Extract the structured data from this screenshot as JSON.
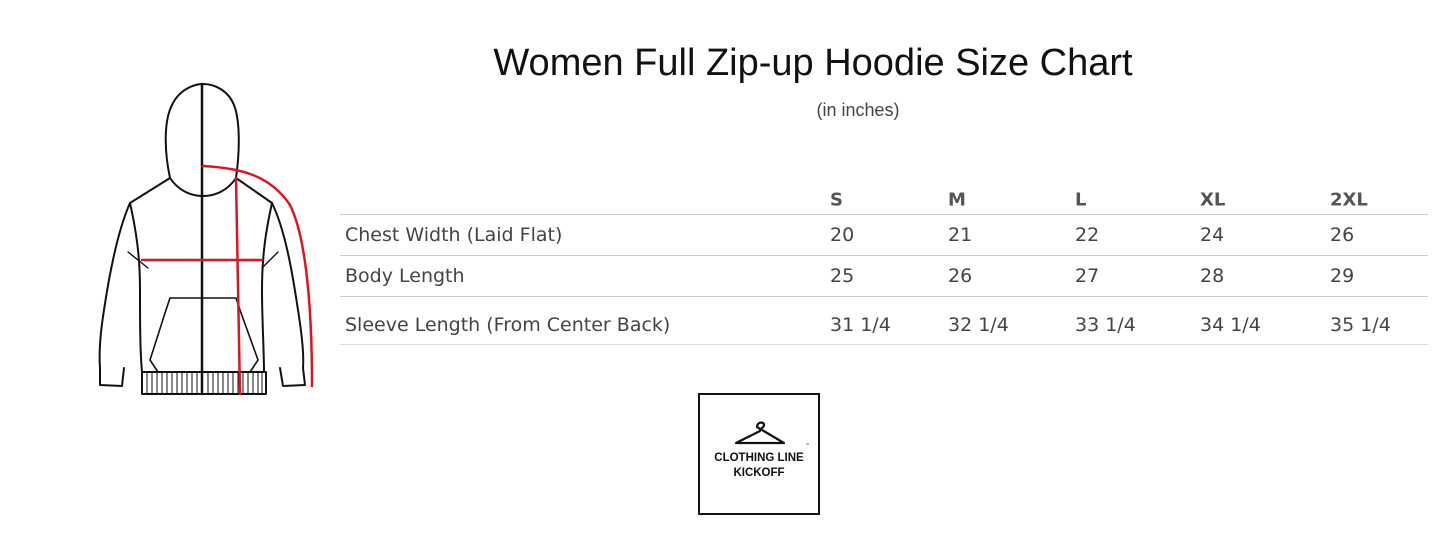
{
  "title": "Women Full Zip-up Hoodie Size Chart",
  "subtitle": "(in inches)",
  "table": {
    "columns": [
      "S",
      "M",
      "L",
      "XL",
      "2XL"
    ],
    "rows": [
      {
        "label": "Chest Width (Laid Flat)",
        "values": [
          "20",
          "21",
          "22",
          "24",
          "26"
        ]
      },
      {
        "label": "Body Length",
        "values": [
          "25",
          "26",
          "27",
          "28",
          "29"
        ]
      },
      {
        "label": "Sleeve Length (From Center Back)",
        "values": [
          "31 1/4",
          "32 1/4",
          "33 1/4",
          "34 1/4",
          "35 1/4"
        ]
      }
    ]
  },
  "logo": {
    "line1": "CLOTHING LINE",
    "line2": "KICKOFF",
    "tm": "™"
  },
  "colors": {
    "measure_line": "#e0141e",
    "outline": "#111111"
  }
}
